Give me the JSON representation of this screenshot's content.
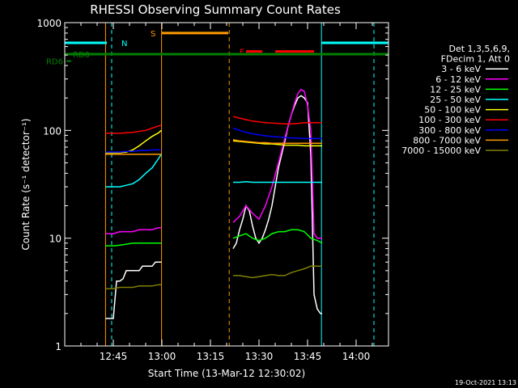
{
  "chart_data": {
    "type": "line",
    "title": "RHESSI Observing Summary Count Rates",
    "xlabel": "Start Time (13-Mar-12 12:30:02)",
    "ylabel": "Count Rate (s⁻¹ detector⁻¹)",
    "y_scale": "log",
    "ylim": [
      1,
      1000
    ],
    "xlim_minutes": [
      0,
      100
    ],
    "x_ticks": [
      {
        "label": "12:45",
        "minute": 15
      },
      {
        "label": "13:00",
        "minute": 30
      },
      {
        "label": "13:15",
        "minute": 45
      },
      {
        "label": "13:30",
        "minute": 60
      },
      {
        "label": "13:45",
        "minute": 75
      },
      {
        "label": "14:00",
        "minute": 90
      }
    ],
    "y_ticks": [
      {
        "label": "1",
        "value": 1
      },
      {
        "label": "10",
        "value": 10
      },
      {
        "label": "100",
        "value": 100
      },
      {
        "label": "1000",
        "value": 1000
      }
    ],
    "legend_header": [
      "Det 1,3,5,6,9,",
      "FDecim 1, Att 0"
    ],
    "legend_position": "right",
    "timestamp": "19-Oct-2021 13:13",
    "series": [
      {
        "name": "3 - 6 keV",
        "color": "#ffffff",
        "segments": [
          {
            "x": [
              12.6,
              15,
              16,
              17,
              18,
              19,
              20,
              21,
              22,
              23,
              24,
              25,
              26,
              27,
              28,
              29,
              29.8
            ],
            "y": [
              1.8,
              1.8,
              4,
              4,
              4.2,
              5,
              5,
              5,
              5,
              5,
              5.5,
              5.5,
              5.5,
              5.5,
              6,
              6,
              6
            ]
          },
          {
            "x": [
              52,
              53,
              54,
              55,
              56,
              57,
              58,
              59,
              60,
              61,
              62,
              63,
              64,
              65,
              66,
              67,
              68,
              69,
              70,
              71,
              72,
              73,
              74,
              75,
              76,
              77,
              78,
              79,
              79.5
            ],
            "y": [
              8,
              9,
              12,
              15,
              20,
              18,
              13,
              10,
              9,
              10,
              12,
              15,
              20,
              30,
              45,
              60,
              80,
              110,
              140,
              170,
              200,
              210,
              200,
              180,
              60,
              3,
              2.2,
              2,
              2
            ]
          }
        ]
      },
      {
        "name": "6 - 12 keV",
        "color": "#ff00ff",
        "segments": [
          {
            "x": [
              12.6,
              15,
              17,
              19,
              21,
              23,
              25,
              27,
              29,
              29.8
            ],
            "y": [
              11,
              11,
              11.5,
              11.5,
              11.5,
              12,
              12,
              12,
              12.5,
              12.5
            ]
          },
          {
            "x": [
              52,
              54,
              56,
              58,
              60,
              62,
              64,
              66,
              68,
              70,
              71,
              72,
              73,
              74,
              75,
              76,
              77,
              78,
              79.5
            ],
            "y": [
              14,
              16,
              20,
              17,
              15,
              20,
              30,
              50,
              85,
              140,
              180,
              220,
              240,
              230,
              170,
              100,
              11,
              10,
              10
            ]
          }
        ]
      },
      {
        "name": "12 - 25 keV",
        "color": "#00ff00",
        "segments": [
          {
            "x": [
              12.6,
              15,
              17,
              19,
              21,
              23,
              25,
              27,
              29,
              29.8
            ],
            "y": [
              8.5,
              8.5,
              8.6,
              8.8,
              9,
              9,
              9,
              9,
              9,
              9
            ]
          },
          {
            "x": [
              52,
              54,
              56,
              58,
              60,
              62,
              64,
              66,
              68,
              70,
              72,
              74,
              76,
              78,
              79.5
            ],
            "y": [
              10,
              10.5,
              11,
              10,
              9.5,
              10,
              11,
              11.5,
              11.5,
              12,
              12,
              11.5,
              10,
              9.5,
              9
            ]
          }
        ]
      },
      {
        "name": "25 - 50 keV",
        "color": "#00ffff",
        "segments": [
          {
            "x": [
              12.6,
              15,
              17,
              19,
              21,
              23,
              25,
              27,
              29,
              29.8
            ],
            "y": [
              30,
              30,
              30,
              31,
              32,
              35,
              40,
              45,
              55,
              60
            ]
          },
          {
            "x": [
              52,
              54,
              56,
              58,
              60,
              62,
              64,
              66,
              68,
              70,
              72,
              74,
              76,
              78,
              79.5
            ],
            "y": [
              33,
              33,
              33.5,
              33,
              33,
              33,
              33,
              33,
              33,
              33,
              33,
              33,
              33,
              33,
              33
            ]
          }
        ]
      },
      {
        "name": "50 - 100 keV",
        "color": "#ffff00",
        "segments": [
          {
            "x": [
              12.6,
              15,
              17,
              19,
              21,
              23,
              25,
              27,
              29,
              29.8
            ],
            "y": [
              62,
              62,
              62,
              63,
              66,
              72,
              80,
              88,
              95,
              100
            ]
          },
          {
            "x": [
              52,
              54,
              56,
              58,
              60,
              62,
              64,
              66,
              68,
              70,
              72,
              74,
              76,
              78,
              79.5
            ],
            "y": [
              80,
              79,
              78,
              77,
              76,
              75,
              75,
              74,
              73,
              73,
              73,
              72,
              72,
              72,
              72
            ]
          }
        ]
      },
      {
        "name": "100 - 300 keV",
        "color": "#ff0000",
        "segments": [
          {
            "x": [
              12.6,
              15,
              17,
              19,
              21,
              23,
              25,
              27,
              29,
              29.8
            ],
            "y": [
              94,
              94,
              94,
              95,
              96,
              98,
              100,
              105,
              110,
              112
            ]
          },
          {
            "x": [
              52,
              54,
              56,
              58,
              60,
              62,
              64,
              66,
              68,
              70,
              72,
              74,
              76,
              78,
              79.5
            ],
            "y": [
              135,
              130,
              126,
              122,
              120,
              118,
              117,
              116,
              115,
              115,
              116,
              118,
              118,
              118,
              118
            ]
          }
        ]
      },
      {
        "name": "300 - 800 keV",
        "color": "#0000ff",
        "segments": [
          {
            "x": [
              12.6,
              15,
              17,
              19,
              21,
              23,
              25,
              27,
              29,
              29.8
            ],
            "y": [
              63,
              63,
              63,
              64,
              64,
              65,
              65,
              66,
              66,
              66
            ]
          },
          {
            "x": [
              52,
              54,
              56,
              58,
              60,
              62,
              64,
              66,
              68,
              70,
              72,
              74,
              76,
              78,
              79.5
            ],
            "y": [
              105,
              100,
              96,
              93,
              91,
              89,
              88,
              87,
              86,
              85,
              85,
              84,
              84,
              84,
              84
            ]
          }
        ]
      },
      {
        "name": "800 - 7000 keV",
        "color": "#ff9900",
        "segments": [
          {
            "x": [
              12.6,
              15,
              17,
              19,
              21,
              23,
              25,
              27,
              29,
              29.8
            ],
            "y": [
              60,
              60,
              60,
              60,
              60,
              60,
              60,
              60,
              60,
              60
            ]
          },
          {
            "x": [
              52,
              54,
              56,
              58,
              60,
              62,
              64,
              66,
              68,
              70,
              72,
              74,
              76,
              78,
              79.5
            ],
            "y": [
              82,
              80,
              79,
              78,
              77,
              77,
              76,
              76,
              76,
              76,
              76,
              76,
              76,
              76,
              76
            ]
          }
        ]
      },
      {
        "name": "7000 - 15000 keV",
        "color": "#808000",
        "segments": [
          {
            "x": [
              12.6,
              15,
              17,
              19,
              21,
              23,
              25,
              27,
              29,
              29.8
            ],
            "y": [
              3.4,
              3.4,
              3.5,
              3.5,
              3.5,
              3.6,
              3.6,
              3.6,
              3.7,
              3.7
            ]
          },
          {
            "x": [
              52,
              54,
              56,
              58,
              60,
              62,
              64,
              66,
              68,
              70,
              72,
              74,
              76,
              78,
              79.5
            ],
            "y": [
              4.5,
              4.5,
              4.4,
              4.3,
              4.4,
              4.5,
              4.6,
              4.5,
              4.5,
              4.8,
              5,
              5.2,
              5.5,
              5.5,
              5.5
            ]
          }
        ]
      }
    ],
    "vertical_lines": [
      {
        "minute": 0,
        "color": "#00ffff",
        "style": "solid"
      },
      {
        "minute": 12.6,
        "color": "#ff9900",
        "style": "solid"
      },
      {
        "minute": 14.5,
        "color": "#00ffff",
        "style": "dashed"
      },
      {
        "minute": 29.9,
        "color": "#ff9900",
        "style": "solid"
      },
      {
        "minute": 50.8,
        "color": "#ff9900",
        "style": "dashed"
      },
      {
        "minute": 79.3,
        "color": "#00ffff",
        "style": "solid"
      },
      {
        "minute": 95.5,
        "color": "#00ffff",
        "style": "dashed"
      }
    ],
    "flag_bars": [
      {
        "label": "N",
        "color": "#00ffff",
        "level": 650,
        "ranges": [
          [
            0,
            13
          ],
          [
            79.3,
            100
          ]
        ],
        "label_minute": 17.5
      },
      {
        "label": "S",
        "color": "#ff9900",
        "level": 800,
        "ranges": [
          [
            30,
            50.5
          ]
        ],
        "label_minute": 26.5
      },
      {
        "label": "F",
        "color": "#ff0000",
        "level": 540,
        "ranges": [
          [
            56,
            61
          ],
          [
            65,
            77
          ]
        ],
        "label_minute": 54
      },
      {
        "label": "RD0",
        "color": "#008000",
        "level": 510,
        "ranges": [
          [
            0,
            100
          ]
        ],
        "label_minute": 2.5
      }
    ],
    "left_markers": [
      {
        "label": "RD6",
        "color": "#008000",
        "level": 440
      }
    ]
  }
}
